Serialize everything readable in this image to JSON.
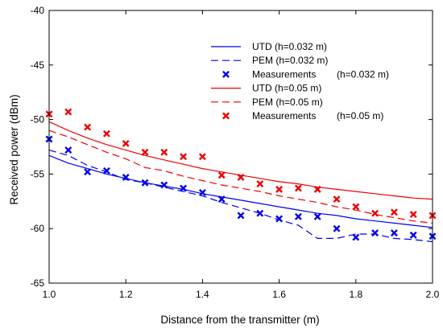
{
  "chart_data": {
    "type": "line",
    "xlabel": "Distance from the transmitter (m)",
    "ylabel": "Received power (dBm)",
    "xlim": [
      1.0,
      2.0
    ],
    "ylim": [
      -65,
      -40
    ],
    "xticks": [
      1.0,
      1.2,
      1.4,
      1.6,
      1.8,
      2.0
    ],
    "xtick_labels": [
      "1.0",
      "1.2",
      "1.4",
      "1.6",
      "1.8",
      "2.0"
    ],
    "yticks": [
      -65,
      -60,
      -55,
      -50,
      -45,
      -40
    ],
    "ytick_labels": [
      "-65",
      "-60",
      "-55",
      "-50",
      "-45",
      "-40"
    ],
    "grid": false,
    "legend_position": "top-right",
    "legend_group_notes": [
      "(h=0.032 m)",
      "(h=0.05 m)"
    ],
    "series": [
      {
        "name": "UTD (h=0.032 m)",
        "legend_label": "UTD (h=0.032 m)",
        "kind": "line",
        "style": "solid",
        "color": "#0000ee",
        "x": [
          1.0,
          1.05,
          1.1,
          1.15,
          1.2,
          1.25,
          1.3,
          1.35,
          1.4,
          1.45,
          1.5,
          1.55,
          1.6,
          1.65,
          1.7,
          1.75,
          1.8,
          1.85,
          1.9,
          1.95,
          2.0
        ],
        "y": [
          -53.3,
          -54.0,
          -54.5,
          -55.0,
          -55.4,
          -55.8,
          -56.1,
          -56.4,
          -56.8,
          -57.1,
          -57.4,
          -57.7,
          -58.0,
          -58.3,
          -58.6,
          -58.8,
          -59.1,
          -59.3,
          -59.5,
          -59.7,
          -59.9
        ]
      },
      {
        "name": "PEM (h=0.032 m)",
        "legend_label": "PEM (h=0.032 m)",
        "kind": "line",
        "style": "dashed",
        "color": "#0000ee",
        "x": [
          1.0,
          1.05,
          1.1,
          1.15,
          1.2,
          1.25,
          1.3,
          1.35,
          1.4,
          1.45,
          1.5,
          1.55,
          1.6,
          1.65,
          1.7,
          1.75,
          1.8,
          1.85,
          1.9,
          1.95,
          2.0
        ],
        "y": [
          -52.8,
          -53.3,
          -54.2,
          -54.8,
          -55.5,
          -55.8,
          -56.2,
          -56.6,
          -57.0,
          -57.6,
          -58.1,
          -58.6,
          -59.2,
          -59.7,
          -60.9,
          -60.9,
          -60.5,
          -60.5,
          -60.9,
          -61.0,
          -61.2
        ]
      },
      {
        "name": "Measurements (h=0.032 m)",
        "legend_label": "Measurements",
        "kind": "scatter",
        "marker": "x",
        "color": "#0000ee",
        "x": [
          1.0,
          1.05,
          1.1,
          1.15,
          1.2,
          1.25,
          1.3,
          1.35,
          1.4,
          1.45,
          1.5,
          1.55,
          1.6,
          1.65,
          1.7,
          1.75,
          1.8,
          1.85,
          1.9,
          1.95,
          2.0
        ],
        "y": [
          -51.8,
          -52.8,
          -54.8,
          -54.7,
          -55.3,
          -55.8,
          -56.0,
          -56.3,
          -56.7,
          -57.3,
          -58.8,
          -58.6,
          -59.1,
          -58.9,
          -58.9,
          -60.0,
          -60.8,
          -60.4,
          -60.4,
          -60.6,
          -60.7
        ]
      },
      {
        "name": "UTD (h=0.05 m)",
        "legend_label": "UTD (h=0.05 m)",
        "kind": "line",
        "style": "solid",
        "color": "#ee0000",
        "x": [
          1.0,
          1.05,
          1.1,
          1.15,
          1.2,
          1.25,
          1.3,
          1.35,
          1.4,
          1.45,
          1.5,
          1.55,
          1.6,
          1.65,
          1.7,
          1.75,
          1.8,
          1.85,
          1.9,
          1.95,
          2.0
        ],
        "y": [
          -50.2,
          -51.0,
          -51.7,
          -52.3,
          -52.8,
          -53.3,
          -53.7,
          -54.1,
          -54.5,
          -54.8,
          -55.1,
          -55.4,
          -55.7,
          -55.9,
          -56.2,
          -56.4,
          -56.6,
          -56.8,
          -57.0,
          -57.2,
          -57.3
        ]
      },
      {
        "name": "PEM (h=0.05 m)",
        "legend_label": "PEM (h=0.05 m)",
        "kind": "line",
        "style": "dashed",
        "color": "#ee0000",
        "x": [
          1.0,
          1.05,
          1.1,
          1.15,
          1.2,
          1.25,
          1.3,
          1.35,
          1.4,
          1.45,
          1.5,
          1.55,
          1.6,
          1.65,
          1.7,
          1.75,
          1.8,
          1.85,
          1.9,
          1.95,
          2.0
        ],
        "y": [
          -51.0,
          -51.6,
          -52.3,
          -53.0,
          -53.6,
          -54.4,
          -54.7,
          -55.2,
          -55.6,
          -56.0,
          -56.3,
          -56.6,
          -57.0,
          -57.3,
          -57.6,
          -58.0,
          -58.3,
          -58.7,
          -59.0,
          -59.3,
          -59.5
        ]
      },
      {
        "name": "Measurements (h=0.05 m)",
        "legend_label": "Measurements",
        "kind": "scatter",
        "marker": "x",
        "color": "#ee0000",
        "x": [
          1.0,
          1.05,
          1.1,
          1.15,
          1.2,
          1.25,
          1.3,
          1.35,
          1.4,
          1.45,
          1.5,
          1.55,
          1.6,
          1.65,
          1.7,
          1.75,
          1.8,
          1.85,
          1.9,
          1.95,
          2.0
        ],
        "y": [
          -49.5,
          -49.3,
          -50.7,
          -51.3,
          -52.2,
          -53.0,
          -53.0,
          -53.4,
          -53.4,
          -55.1,
          -55.3,
          -55.9,
          -56.4,
          -56.3,
          -56.4,
          -57.3,
          -58.0,
          -58.6,
          -58.5,
          -58.7,
          -58.8
        ]
      }
    ]
  }
}
